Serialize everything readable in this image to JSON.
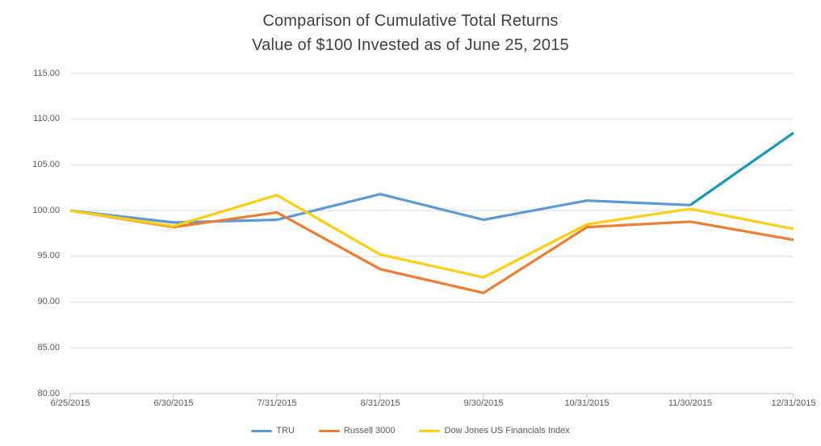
{
  "title": {
    "line1": "Comparison of Cumulative Total Returns",
    "line2": "Value of $100 Invested as of June 25, 2015"
  },
  "chart_data": {
    "type": "line",
    "title": "Comparison of Cumulative Total Returns",
    "subtitle": "Value of $100 Invested as of June 25, 2015",
    "categories": [
      "6/25/2015",
      "6/30/2015",
      "7/31/2015",
      "8/31/2015",
      "9/30/2015",
      "10/31/2015",
      "11/30/2015",
      "12/31/2015"
    ],
    "series": [
      {
        "name": "TRU",
        "color": "#5B9BD5",
        "final_segment_color": "#1899B8",
        "values": [
          100.0,
          98.7,
          99.0,
          101.8,
          99.0,
          101.1,
          100.6,
          108.5
        ]
      },
      {
        "name": "Russell 3000",
        "color": "#ED7D31",
        "values": [
          100.0,
          98.2,
          99.8,
          93.6,
          91.0,
          98.2,
          98.8,
          96.8
        ]
      },
      {
        "name": "Dow Jones US Financials Index",
        "color": "#FFCD11",
        "values": [
          100.0,
          98.3,
          101.7,
          95.2,
          92.7,
          98.5,
          100.2,
          98.0
        ]
      }
    ],
    "ylim": [
      80,
      115
    ],
    "ytick_step": 5,
    "ytick_labels": [
      "80.00",
      "85.00",
      "90.00",
      "95.00",
      "100.00",
      "105.00",
      "110.00",
      "115.00"
    ],
    "xlabel": "",
    "ylabel": "",
    "grid": "horizontal",
    "legend_position": "bottom",
    "colors": {
      "gridline": "#D9D9D9",
      "axis_line": "#BFBFBF",
      "tick_mark": "#BFBFBF",
      "title_text": "#3F3F3F",
      "axis_text": "#595959",
      "legend_text": "#595959",
      "background": "#FFFFFF"
    }
  }
}
